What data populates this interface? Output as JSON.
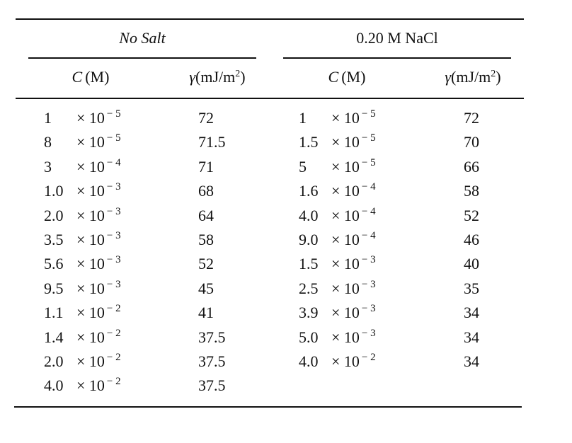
{
  "groups": [
    {
      "title": "No Salt",
      "headers": {
        "concentration": {
          "symbol": "C",
          "unit": "(M)"
        },
        "tension": {
          "symbol": "γ",
          "unit": "(mJ/m",
          "power": "2",
          "close": ")"
        }
      },
      "rows": [
        {
          "concentration": {
            "mantissa": "1",
            "base": "× 10",
            "exponent": "− 5"
          },
          "tension": 72
        },
        {
          "concentration": {
            "mantissa": "8",
            "base": "× 10",
            "exponent": "− 5"
          },
          "tension": 71.5
        },
        {
          "concentration": {
            "mantissa": "3",
            "base": "× 10",
            "exponent": "− 4"
          },
          "tension": 71
        },
        {
          "concentration": {
            "mantissa": "1.0",
            "base": "× 10",
            "exponent": "− 3"
          },
          "tension": 68
        },
        {
          "concentration": {
            "mantissa": "2.0",
            "base": "× 10",
            "exponent": "− 3"
          },
          "tension": 64
        },
        {
          "concentration": {
            "mantissa": "3.5",
            "base": "× 10",
            "exponent": "− 3"
          },
          "tension": 58
        },
        {
          "concentration": {
            "mantissa": "5.6",
            "base": "× 10",
            "exponent": "− 3"
          },
          "tension": 52
        },
        {
          "concentration": {
            "mantissa": "9.5",
            "base": "× 10",
            "exponent": "− 3"
          },
          "tension": 45
        },
        {
          "concentration": {
            "mantissa": "1.1",
            "base": "× 10",
            "exponent": "− 2"
          },
          "tension": 41
        },
        {
          "concentration": {
            "mantissa": "1.4",
            "base": "× 10",
            "exponent": "− 2"
          },
          "tension": 37.5
        },
        {
          "concentration": {
            "mantissa": "2.0",
            "base": "× 10",
            "exponent": "− 2"
          },
          "tension": 37.5
        },
        {
          "concentration": {
            "mantissa": "4.0",
            "base": "× 10",
            "exponent": "− 2"
          },
          "tension": 37.5
        }
      ]
    },
    {
      "title": "0.20 M NaCl",
      "headers": {
        "concentration": {
          "symbol": "C",
          "unit": "(M)"
        },
        "tension": {
          "symbol": "γ",
          "unit": "(mJ/m",
          "power": "2",
          "close": ")"
        }
      },
      "rows": [
        {
          "concentration": {
            "mantissa": "1",
            "base": "× 10",
            "exponent": "− 5"
          },
          "tension": 72
        },
        {
          "concentration": {
            "mantissa": "1.5",
            "base": "× 10",
            "exponent": "− 5"
          },
          "tension": 70
        },
        {
          "concentration": {
            "mantissa": "5",
            "base": "× 10",
            "exponent": "− 5"
          },
          "tension": 66
        },
        {
          "concentration": {
            "mantissa": "1.6",
            "base": "× 10",
            "exponent": "− 4"
          },
          "tension": 58
        },
        {
          "concentration": {
            "mantissa": "4.0",
            "base": "× 10",
            "exponent": "− 4"
          },
          "tension": 52
        },
        {
          "concentration": {
            "mantissa": "9.0",
            "base": "× 10",
            "exponent": "− 4"
          },
          "tension": 46
        },
        {
          "concentration": {
            "mantissa": "1.5",
            "base": "× 10",
            "exponent": "− 3"
          },
          "tension": 40
        },
        {
          "concentration": {
            "mantissa": "2.5",
            "base": "× 10",
            "exponent": "− 3"
          },
          "tension": 35
        },
        {
          "concentration": {
            "mantissa": "3.9",
            "base": "× 10",
            "exponent": "− 3"
          },
          "tension": 34
        },
        {
          "concentration": {
            "mantissa": "5.0",
            "base": "× 10",
            "exponent": "− 3"
          },
          "tension": 34
        },
        {
          "concentration": {
            "mantissa": "4.0",
            "base": "× 10",
            "exponent": "− 2"
          },
          "tension": 34
        }
      ]
    }
  ]
}
